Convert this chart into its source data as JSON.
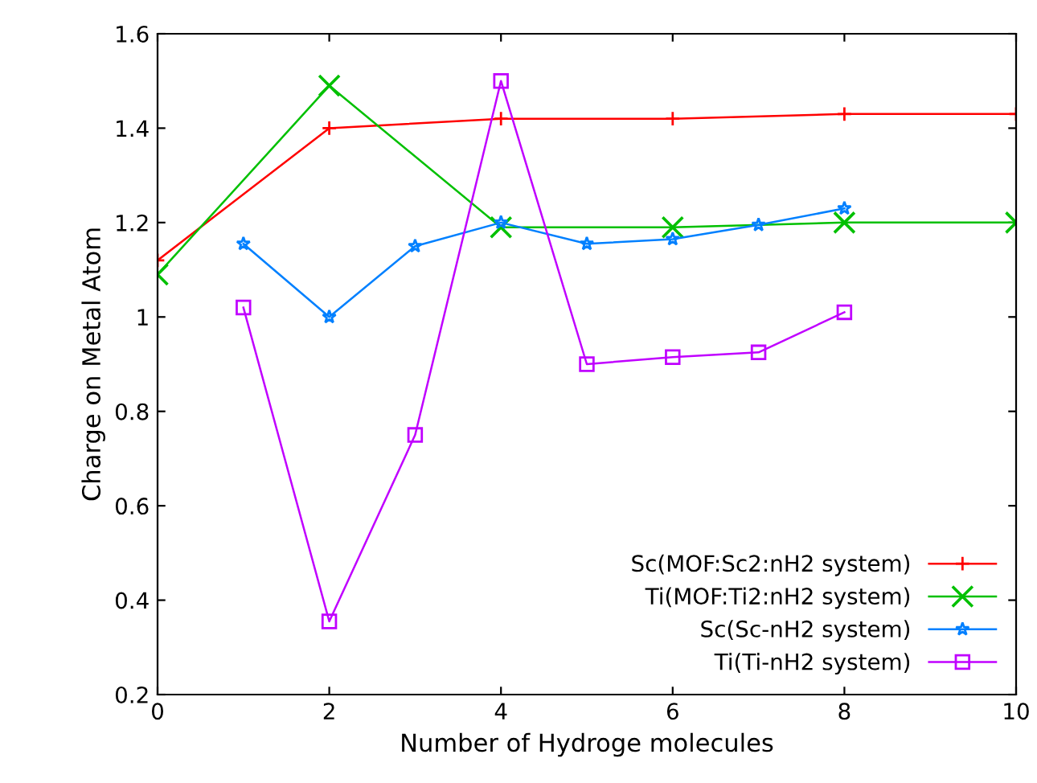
{
  "chart_data": {
    "type": "line",
    "xlabel": "Number of Hydroge molecules",
    "ylabel": "Charge on Metal Atom",
    "xlim": [
      0,
      10
    ],
    "xticks": [
      0,
      2,
      4,
      6,
      8,
      10
    ],
    "ylim": [
      0.2,
      1.6
    ],
    "yticks": [
      0.2,
      0.4,
      0.6,
      0.8,
      1,
      1.2,
      1.4,
      1.6
    ],
    "grid": false,
    "legend": "bottom right",
    "series": [
      {
        "name": "Sc(MOF:Sc2:nH2 system)",
        "color": "#ff0000",
        "marker": "plus",
        "x": [
          0,
          2,
          4,
          6,
          8,
          10
        ],
        "values": [
          1.12,
          1.4,
          1.42,
          1.42,
          1.43,
          1.43
        ]
      },
      {
        "name": "Ti(MOF:Ti2:nH2 system)",
        "color": "#00c000",
        "marker": "cross",
        "x": [
          0,
          2,
          4,
          6,
          8,
          10
        ],
        "values": [
          1.09,
          1.49,
          1.19,
          1.19,
          1.2,
          1.2
        ]
      },
      {
        "name": "Sc(Sc-nH2 system)",
        "color": "#0080ff",
        "marker": "star",
        "x": [
          1,
          2,
          3,
          4,
          5,
          6,
          7,
          8
        ],
        "values": [
          1.155,
          1.0,
          1.15,
          1.2,
          1.155,
          1.165,
          1.195,
          1.23
        ]
      },
      {
        "name": "Ti(Ti-nH2 system)",
        "color": "#c000ff",
        "marker": "square",
        "x": [
          1,
          2,
          3,
          4,
          5,
          6,
          7,
          8
        ],
        "values": [
          1.02,
          0.355,
          0.75,
          1.5,
          0.9,
          0.915,
          0.925,
          1.01
        ]
      }
    ]
  }
}
